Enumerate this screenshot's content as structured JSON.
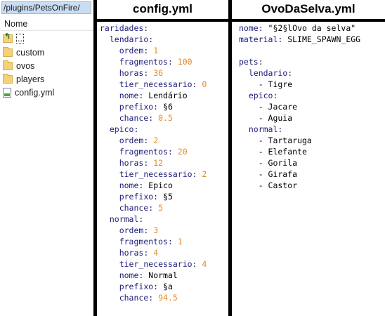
{
  "explorer": {
    "path": "/plugins/PetsOnFire/",
    "column_header": "Nome",
    "items": [
      {
        "name": "..",
        "type": "up"
      },
      {
        "name": "custom",
        "type": "folder"
      },
      {
        "name": "ovos",
        "type": "folder"
      },
      {
        "name": "players",
        "type": "folder"
      },
      {
        "name": "config.yml",
        "type": "file"
      }
    ]
  },
  "config_panel": {
    "title": "config.yml",
    "root_key": "raridades:",
    "groups": [
      {
        "key": "lendario:",
        "fields": [
          {
            "key": "ordem:",
            "value": "1",
            "kind": "number"
          },
          {
            "key": "fragmentos:",
            "value": "100",
            "kind": "number"
          },
          {
            "key": "horas:",
            "value": "36",
            "kind": "number"
          },
          {
            "key": "tier_necessario:",
            "value": "0",
            "kind": "number"
          },
          {
            "key": "nome:",
            "value": "Lendário",
            "kind": "string"
          },
          {
            "key": "prefixo:",
            "value": "§6",
            "kind": "string"
          },
          {
            "key": "chance:",
            "value": "0.5",
            "kind": "number"
          }
        ]
      },
      {
        "key": "epico:",
        "fields": [
          {
            "key": "ordem:",
            "value": "2",
            "kind": "number"
          },
          {
            "key": "fragmentos:",
            "value": "20",
            "kind": "number"
          },
          {
            "key": "horas:",
            "value": "12",
            "kind": "number"
          },
          {
            "key": "tier_necessario:",
            "value": "2",
            "kind": "number"
          },
          {
            "key": "nome:",
            "value": "Epico",
            "kind": "string"
          },
          {
            "key": "prefixo:",
            "value": "§5",
            "kind": "string"
          },
          {
            "key": "chance:",
            "value": "5",
            "kind": "number"
          }
        ]
      },
      {
        "key": "normal:",
        "fields": [
          {
            "key": "ordem:",
            "value": "3",
            "kind": "number"
          },
          {
            "key": "fragmentos:",
            "value": "1",
            "kind": "number"
          },
          {
            "key": "horas:",
            "value": "4",
            "kind": "number"
          },
          {
            "key": "tier_necessario:",
            "value": "4",
            "kind": "number"
          },
          {
            "key": "nome:",
            "value": "Normal",
            "kind": "string"
          },
          {
            "key": "prefixo:",
            "value": "§a",
            "kind": "string"
          },
          {
            "key": "chance:",
            "value": "94.5",
            "kind": "number"
          }
        ]
      }
    ]
  },
  "egg_panel": {
    "title": "OvoDaSelva.yml",
    "nome_key": "nome:",
    "nome_value": "\"§2§lOvo da selva\"",
    "material_key": "material:",
    "material_value": "SLIME_SPAWN_EGG",
    "pets_key": "pets:",
    "groups": [
      {
        "key": "lendario:",
        "items": [
          "Tigre"
        ]
      },
      {
        "key": "epico:",
        "items": [
          "Jacare",
          "Aguia"
        ]
      },
      {
        "key": "normal:",
        "items": [
          "Tartaruga",
          "Elefante",
          "Gorila",
          "Girafa",
          "Castor"
        ]
      }
    ]
  },
  "colors": {
    "key": "#1c1c7a",
    "number": "#e58a2a",
    "path_bar": "#c9ddf3",
    "divider": "#000000"
  }
}
